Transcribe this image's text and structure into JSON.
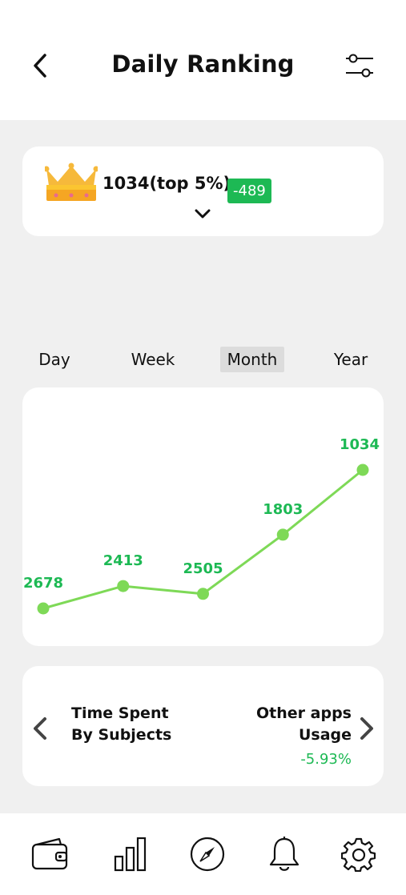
{
  "header": {
    "title": "Daily Ranking",
    "back_icon": "chevron-left-icon",
    "filter_icon": "sliders-icon"
  },
  "rank": {
    "text": "1034(top 5%)",
    "change": "-489",
    "change_color": "#1db954",
    "crown_icon": "crown-icon",
    "expand_icon": "chevron-down-icon"
  },
  "tabs": [
    {
      "label": "Day",
      "active": false
    },
    {
      "label": "Week",
      "active": false
    },
    {
      "label": "Month",
      "active": true
    },
    {
      "label": "Year",
      "active": false
    }
  ],
  "chart_data": {
    "type": "line",
    "values": [
      2678,
      2413,
      2505,
      1803,
      1034
    ],
    "data_labels": [
      "2678",
      "2413",
      "2505",
      "1803",
      "1034"
    ],
    "y_inverted": true,
    "line_color": "#7ed957",
    "label_color": "#1db954",
    "grid": false
  },
  "subjects": {
    "left_title_line1": "Time Spent",
    "left_title_line2": "By Subjects",
    "right_title_line1": "Other apps",
    "right_title_line2": "Usage",
    "right_change": "-5.93%",
    "prev_icon": "chevron-left-icon",
    "next_icon": "chevron-right-icon"
  },
  "nav": {
    "items": [
      {
        "icon": "wallet-icon"
      },
      {
        "icon": "bar-chart-icon"
      },
      {
        "icon": "compass-icon"
      },
      {
        "icon": "bell-icon"
      },
      {
        "icon": "gear-icon"
      }
    ]
  }
}
